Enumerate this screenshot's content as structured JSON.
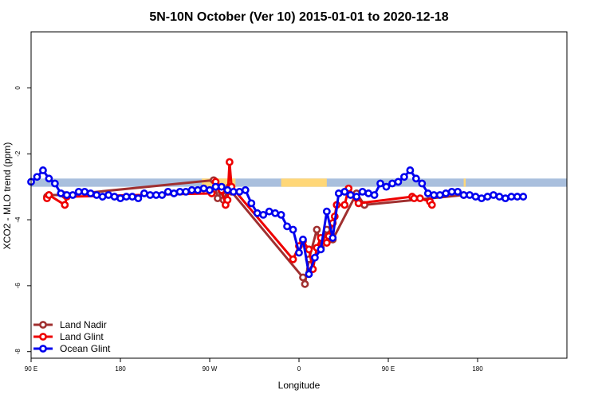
{
  "chart_data": {
    "type": "line",
    "title": "5N-10N October (Ver 10)   2015-01-01 to 2020-12-18",
    "xlabel": "Longitude",
    "ylabel": "XCO2 - MLO trend (ppm)",
    "xlim": [
      -90,
      180
    ],
    "ylim": [
      -8.2,
      1.7
    ],
    "xticks": [
      {
        "value": -90,
        "label": "90 E"
      },
      {
        "value": -45,
        "label": "180"
      },
      {
        "value": 0,
        "label": "90 W"
      },
      {
        "value": 45,
        "label": "0"
      },
      {
        "value": 90,
        "label": "90 E"
      },
      {
        "value": 135,
        "label": "180"
      }
    ],
    "yticks": [
      {
        "value": 0,
        "label": "0"
      },
      {
        "value": -2,
        "label": "-2"
      },
      {
        "value": -4,
        "label": "-4"
      },
      {
        "value": -6,
        "label": "-6"
      },
      {
        "value": -8,
        "label": "-8"
      }
    ],
    "legend_position": "bottom-left",
    "band": {
      "y_top": -2.75,
      "y_bottom": -3.0,
      "color": "#a9bfdd",
      "land_color": "#ffd778",
      "land_ranges": [
        [
          -4,
          13
        ],
        [
          36,
          59
        ],
        [
          128,
          129
        ]
      ]
    },
    "series": [
      {
        "name": "Land Nadir",
        "color": "#a03030",
        "x": [
          -82,
          -81,
          -73,
          2,
          4,
          6,
          7,
          10,
          11,
          47,
          48,
          50,
          54,
          56,
          59,
          62,
          74,
          78,
          128
        ],
        "y": [
          -3.3,
          -3.25,
          -3.25,
          -2.8,
          -3.35,
          -3.15,
          -3.4,
          -3.0,
          -3.15,
          -5.75,
          -5.95,
          -5.2,
          -4.3,
          -4.85,
          -4.3,
          -4.6,
          -3.2,
          -3.55,
          -3.25
        ]
      },
      {
        "name": "Land Glint",
        "color": "#ee0000",
        "x": [
          -82,
          -81,
          -73,
          -72,
          1,
          3,
          4,
          6,
          8,
          9,
          10,
          11,
          42,
          45,
          47,
          50,
          52,
          54,
          56,
          59,
          60,
          62,
          63,
          64,
          68,
          70,
          74,
          75,
          102,
          103,
          106,
          111,
          112
        ],
        "y": [
          -3.35,
          -3.25,
          -3.55,
          -3.3,
          -3.2,
          -2.85,
          -3.0,
          -3.1,
          -3.55,
          -3.4,
          -2.25,
          -3.0,
          -5.2,
          -4.8,
          -4.65,
          -4.9,
          -5.5,
          -4.85,
          -4.55,
          -4.7,
          -4.5,
          -4.1,
          -3.9,
          -3.55,
          -3.55,
          -3.05,
          -3.35,
          -3.5,
          -3.3,
          -3.35,
          -3.35,
          -3.45,
          -3.55
        ]
      },
      {
        "name": "Ocean Glint",
        "color": "#0000ee",
        "x": [
          -90,
          -87,
          -84,
          -81,
          -78,
          -75,
          -72,
          -69,
          -66,
          -63,
          -60,
          -57,
          -54,
          -51,
          -48,
          -45,
          -42,
          -39,
          -36,
          -33,
          -30,
          -27,
          -24,
          -21,
          -18,
          -15,
          -12,
          -9,
          -6,
          -3,
          0,
          3,
          6,
          9,
          12,
          15,
          18,
          21,
          24,
          27,
          30,
          33,
          36,
          39,
          42,
          45,
          47,
          50,
          53,
          56,
          59,
          62,
          65,
          68,
          71,
          74,
          77,
          80,
          83,
          86,
          89,
          92,
          95,
          98,
          101,
          104,
          107,
          110,
          113,
          116,
          119,
          122,
          125,
          128,
          131,
          134,
          137,
          140,
          143,
          146,
          149,
          152,
          155,
          158
        ],
        "y": [
          -2.85,
          -2.7,
          -2.5,
          -2.75,
          -2.9,
          -3.2,
          -3.25,
          -3.25,
          -3.15,
          -3.15,
          -3.2,
          -3.25,
          -3.3,
          -3.25,
          -3.3,
          -3.35,
          -3.3,
          -3.3,
          -3.35,
          -3.2,
          -3.25,
          -3.25,
          -3.25,
          -3.15,
          -3.2,
          -3.15,
          -3.15,
          -3.1,
          -3.1,
          -3.05,
          -3.1,
          -3.0,
          -3.0,
          -3.1,
          -3.15,
          -3.15,
          -3.1,
          -3.5,
          -3.8,
          -3.85,
          -3.75,
          -3.8,
          -3.85,
          -4.2,
          -4.3,
          -5.0,
          -4.6,
          -5.65,
          -5.15,
          -4.9,
          -3.75,
          -4.55,
          -3.2,
          -3.15,
          -3.25,
          -3.3,
          -3.15,
          -3.2,
          -3.25,
          -2.9,
          -3.0,
          -2.9,
          -2.85,
          -2.7,
          -2.5,
          -2.75,
          -2.9,
          -3.2,
          -3.25,
          -3.25,
          -3.2,
          -3.15,
          -3.15,
          -3.25,
          -3.25,
          -3.3,
          -3.35,
          -3.3,
          -3.25,
          -3.3,
          -3.35,
          -3.3,
          -3.3,
          -3.3
        ]
      }
    ]
  }
}
